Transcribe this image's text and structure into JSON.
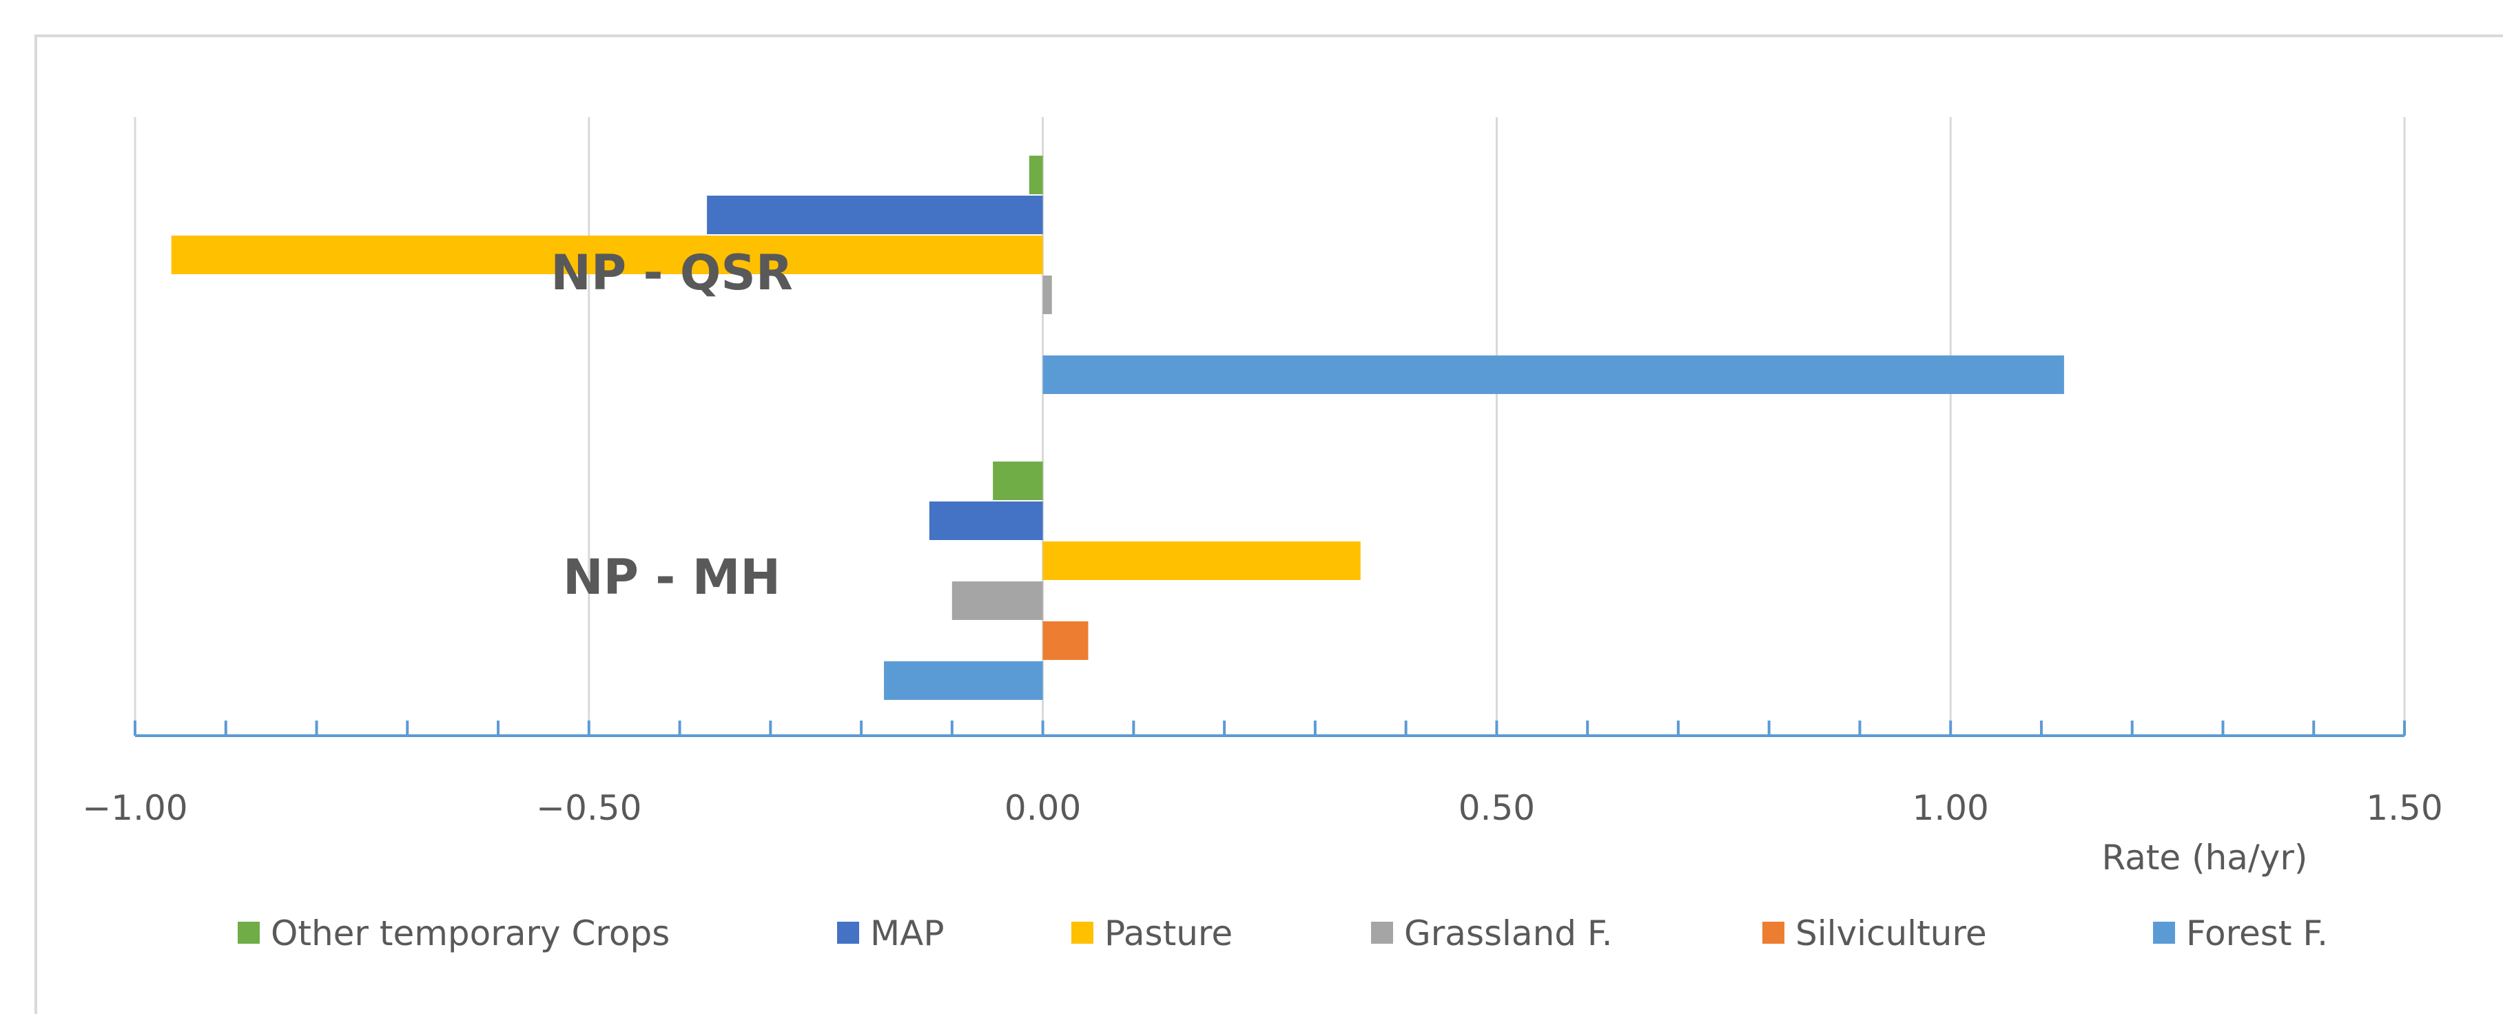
{
  "chart_data": {
    "type": "bar",
    "orientation": "horizontal",
    "title": "",
    "xlabel": "Rate (ha/yr)",
    "ylabel": "",
    "xlim": [
      -1.0,
      1.5
    ],
    "x_ticks": [
      "−1.00",
      "−0.50",
      "0.00",
      "0.50",
      "1.00",
      "1.50"
    ],
    "grid": true,
    "legend_position": "bottom",
    "categories": [
      "NP - QSR",
      "NP - MH"
    ],
    "series": [
      {
        "name": "Other temporary Crops",
        "color": "#70ad47",
        "values": [
          -0.015,
          -0.055
        ]
      },
      {
        "name": "MAP",
        "color": "#4472c4",
        "values": [
          -0.37,
          -0.125
        ]
      },
      {
        "name": "Pasture",
        "color": "#ffc000",
        "values": [
          -0.96,
          0.35
        ]
      },
      {
        "name": "Grassland F.",
        "color": "#a5a5a5",
        "values": [
          0.01,
          -0.1
        ]
      },
      {
        "name": "Silviculture",
        "color": "#ed7d31",
        "values": [
          0.0,
          0.05
        ]
      },
      {
        "name": "Forest F.",
        "color": "#5b9bd5",
        "values": [
          1.125,
          -0.175
        ]
      }
    ]
  }
}
